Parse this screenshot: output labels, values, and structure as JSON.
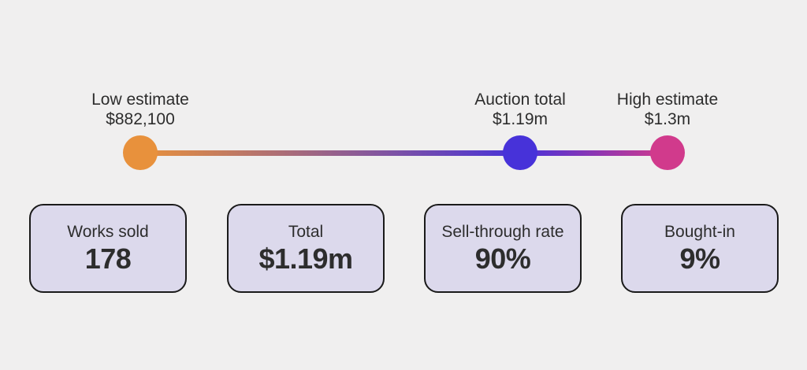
{
  "colors": {
    "background": "#f0efef",
    "card_fill": "#dcd9ec",
    "card_border": "#1a1a1a",
    "text": "#2d2d2d"
  },
  "chart_data": {
    "type": "scatter",
    "layout": {
      "orientation": "horizontal",
      "legend": "none",
      "grid": false,
      "line_is_gradient": true
    },
    "range": [
      882100,
      1300000
    ],
    "markers": [
      {
        "label": "Low estimate",
        "value_text": "$882,100",
        "value": 882100,
        "color": "#e8913c",
        "position_pct": 0
      },
      {
        "label": "Auction total",
        "value_text": "$1.19m",
        "value": 1190000,
        "color": "#4732d9",
        "position_pct": 72
      },
      {
        "label": "High estimate",
        "value_text": "$1.3m",
        "value": 1300000,
        "color": "#d13a8c",
        "position_pct": 100
      }
    ],
    "stats": [
      {
        "label": "Works sold",
        "value": "178"
      },
      {
        "label": "Total",
        "value": "$1.19m"
      },
      {
        "label": "Sell-through rate",
        "value": "90%"
      },
      {
        "label": "Bought-in",
        "value": "9%"
      }
    ]
  }
}
